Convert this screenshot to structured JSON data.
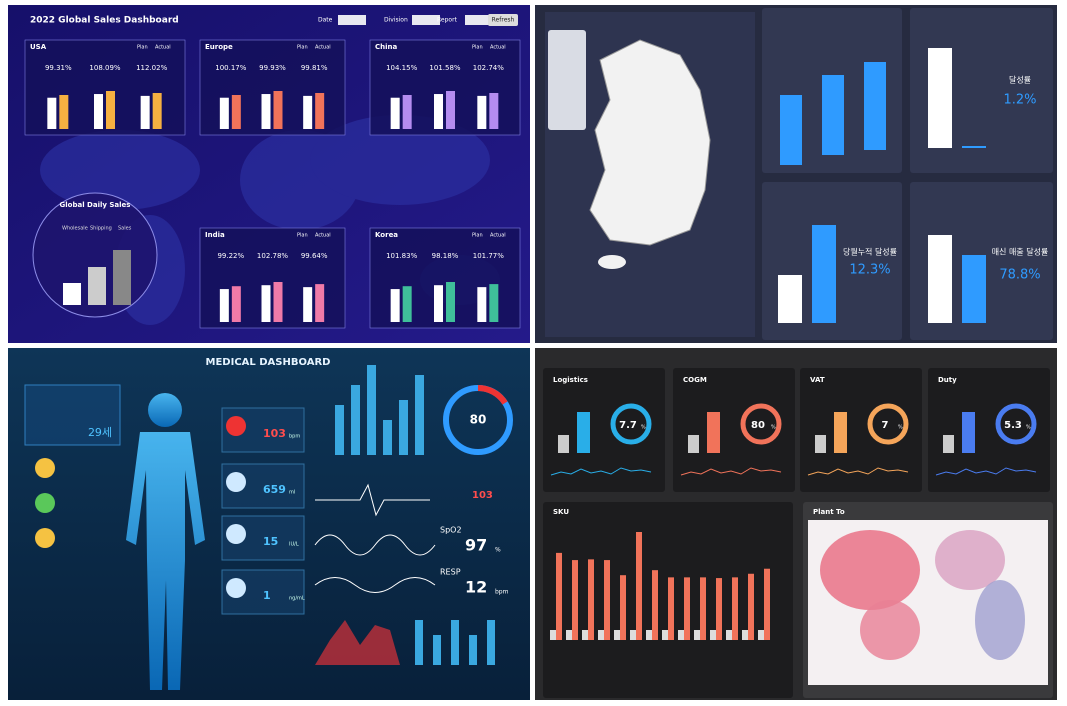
{
  "sales_dashboard": {
    "title": "2022 Global Sales Dashboard",
    "controls": [
      "Date",
      "Division",
      "Report",
      "Refresh"
    ],
    "legend": [
      "Plan",
      "Actual"
    ],
    "regions": [
      {
        "name": "USA",
        "metrics": [
          "99.31%",
          "108.09%",
          "112.02%"
        ]
      },
      {
        "name": "Europe",
        "metrics": [
          "100.17%",
          "99.93%",
          "99.81%"
        ]
      },
      {
        "name": "China",
        "metrics": [
          "104.15%",
          "101.58%",
          "102.74%"
        ]
      },
      {
        "name": "India",
        "metrics": [
          "99.22%",
          "102.78%",
          "99.64%"
        ]
      },
      {
        "name": "Korea",
        "metrics": [
          "101.83%",
          "98.18%",
          "101.77%"
        ]
      }
    ],
    "daily": {
      "title": "Global Daily Sales",
      "legend": [
        "Wholesale",
        "Shipping",
        "Sales"
      ]
    }
  },
  "korea_dashboard": {
    "cards": [
      {
        "label": "달성률",
        "value": "1.2%"
      },
      {
        "label": "당월누적 달성률",
        "value": "12.3%"
      },
      {
        "label": "매신 매출 달성률",
        "value": "78.8%"
      }
    ]
  },
  "medical_dashboard": {
    "title": "MEDICAL DASHBOARD",
    "age": "29세",
    "vitals": [
      {
        "value": "103",
        "unit": "bpm"
      },
      {
        "value": "659",
        "unit": "ml"
      },
      {
        "value": "15",
        "unit": "IU/L"
      },
      {
        "value": "1",
        "unit": "ng/mL"
      }
    ],
    "gauge": "80",
    "readings": [
      {
        "label": "SpO2",
        "value": "97",
        "unit": "%"
      },
      {
        "label": "RESP",
        "value": "12",
        "unit": "bpm"
      }
    ],
    "heart_rate": "103"
  },
  "cost_dashboard": {
    "cards": [
      {
        "title": "Logistics",
        "value": "7.7",
        "unit": "%"
      },
      {
        "title": "COGM",
        "value": "80",
        "unit": "%"
      },
      {
        "title": "VAT",
        "value": "7",
        "unit": "%"
      },
      {
        "title": "Duty",
        "value": "5.3",
        "unit": "%"
      }
    ],
    "panels": [
      "SKU",
      "Plant To"
    ]
  }
}
